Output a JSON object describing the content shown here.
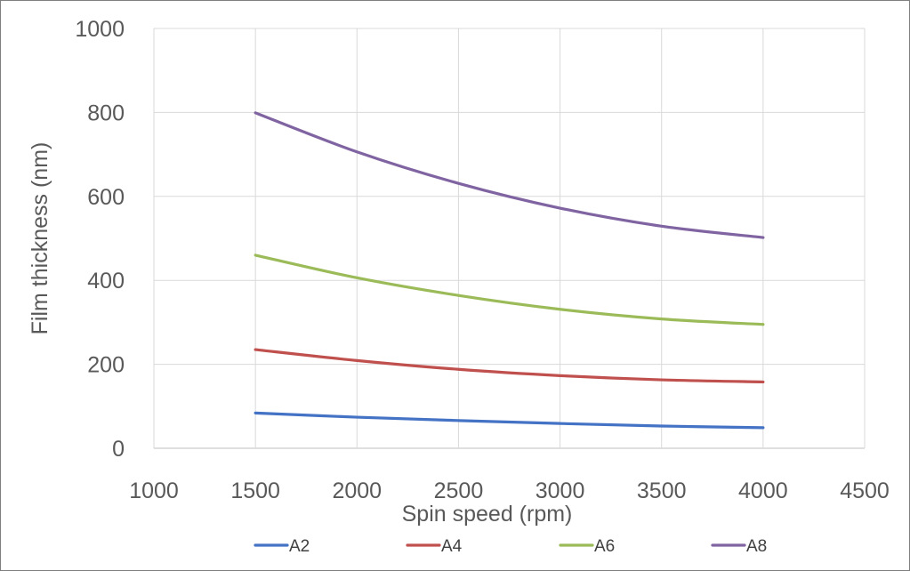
{
  "chart_data": {
    "type": "line",
    "title": "",
    "xlabel": "Spin speed (rpm)",
    "ylabel": "Film thickness (nm)",
    "xlim": [
      1000,
      4500
    ],
    "ylim": [
      0,
      1000
    ],
    "xticks": [
      1000,
      1500,
      2000,
      2500,
      3000,
      3500,
      4000,
      4500
    ],
    "yticks": [
      0,
      200,
      400,
      600,
      800,
      1000
    ],
    "grid": true,
    "legend_position": "bottom",
    "series": [
      {
        "name": "A2",
        "color": "#4472c4",
        "x": [
          1500,
          2000,
          2500,
          3000,
          3500,
          4000
        ],
        "y": [
          84,
          74,
          66,
          59,
          53,
          49
        ]
      },
      {
        "name": "A4",
        "color": "#c0504d",
        "x": [
          1500,
          2000,
          2500,
          3000,
          3500,
          4000
        ],
        "y": [
          235,
          209,
          188,
          173,
          163,
          158
        ]
      },
      {
        "name": "A6",
        "color": "#9bbb59",
        "x": [
          1500,
          2000,
          2500,
          3000,
          3500,
          4000
        ],
        "y": [
          460,
          406,
          364,
          331,
          308,
          295
        ]
      },
      {
        "name": "A8",
        "color": "#8064a2",
        "x": [
          1500,
          2000,
          2500,
          3000,
          3500,
          4000
        ],
        "y": [
          799,
          706,
          631,
          572,
          529,
          502
        ]
      }
    ]
  }
}
